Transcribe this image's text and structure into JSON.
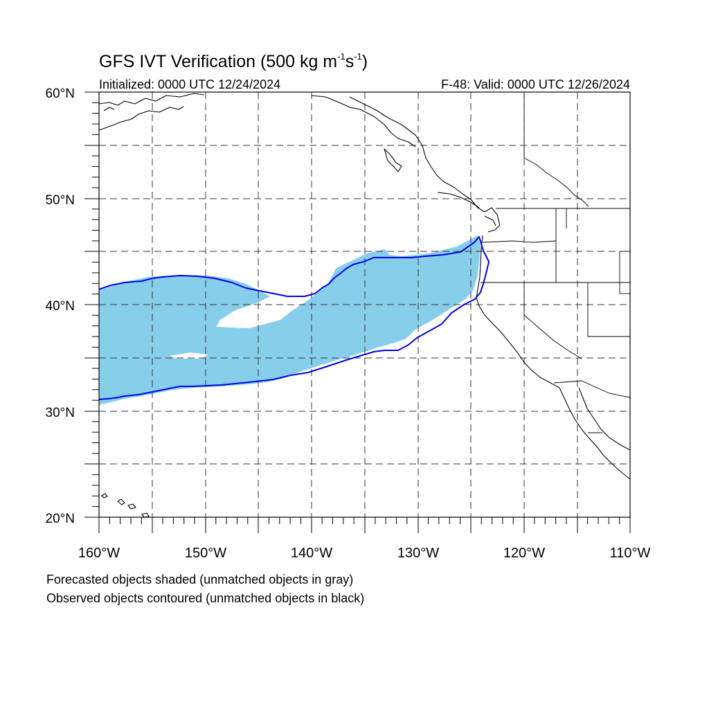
{
  "header": {
    "title_main": "GFS IVT Verification (500 kg m",
    "title_sup1": "-1",
    "title_mid": "s",
    "title_sup2": "-1",
    "title_end": ")",
    "initialized": "Initialized: 0000 UTC 12/24/2024",
    "valid": "F-48: Valid: 0000 UTC 12/26/2024"
  },
  "axes": {
    "lat_labels": [
      "20°N",
      "30°N",
      "40°N",
      "50°N",
      "60°N"
    ],
    "lon_labels": [
      "160°W",
      "150°W",
      "140°W",
      "130°W",
      "120°W",
      "110°W"
    ],
    "lat_range": [
      20,
      60
    ],
    "lon_range": [
      -160,
      -110
    ],
    "grid_spacing_deg": 5
  },
  "footer": {
    "line1": "Forecasted objects shaded (unmatched objects in gray)",
    "line2": "Observed objects contoured (unmatched objects in black)"
  },
  "colors": {
    "forecast_fill": "#87ceeb",
    "observed_contour": "#0000ee"
  }
}
